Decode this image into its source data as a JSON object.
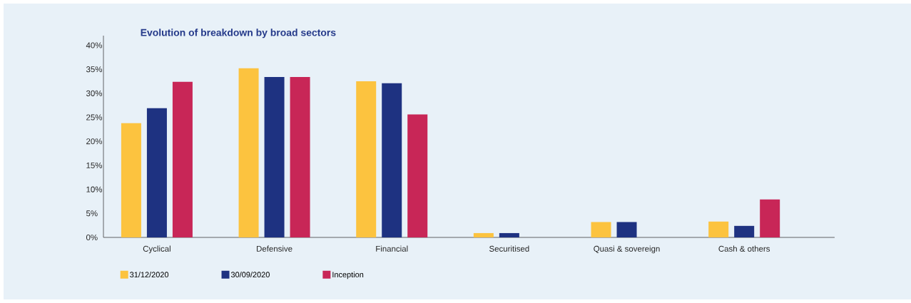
{
  "chart_data": {
    "type": "bar",
    "title": "Evolution of breakdown by broad sectors",
    "categories": [
      "Cyclical",
      "Defensive",
      "Financial",
      "Securitised",
      "Quasi & sovereign",
      "Cash & others"
    ],
    "series": [
      {
        "name": "31/12/2020",
        "color": "#fcc33f",
        "values": [
          23.8,
          35.2,
          32.5,
          0.9,
          3.2,
          3.3
        ]
      },
      {
        "name": "30/09/2020",
        "color": "#1e3281",
        "values": [
          26.9,
          33.4,
          32.1,
          0.9,
          3.2,
          2.4
        ]
      },
      {
        "name": "Inception",
        "color": "#c82657",
        "values": [
          32.4,
          33.4,
          25.6,
          0,
          0,
          7.9
        ]
      }
    ],
    "ylim": [
      0,
      42
    ],
    "yticks": [
      {
        "value": 0,
        "label": "0%"
      },
      {
        "value": 5,
        "label": "5%"
      },
      {
        "value": 10,
        "label": "10%"
      },
      {
        "value": 15,
        "label": "15%"
      },
      {
        "value": 20,
        "label": "20%"
      },
      {
        "value": 25,
        "label": "25%"
      },
      {
        "value": 30,
        "label": "30%"
      },
      {
        "value": 35,
        "label": "35%"
      },
      {
        "value": 40,
        "label": "40%"
      }
    ],
    "grid": false,
    "legend": "bottom left"
  }
}
